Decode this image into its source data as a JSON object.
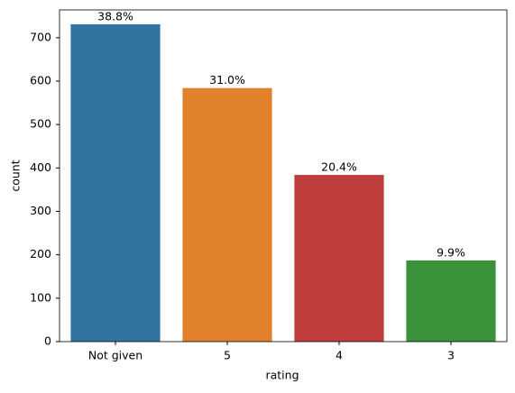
{
  "chart_data": {
    "type": "bar",
    "categories": [
      "Not given",
      "5",
      "4",
      "3"
    ],
    "values": [
      731,
      584,
      384,
      187
    ],
    "annotations": [
      "38.8%",
      "31.0%",
      "20.4%",
      "9.9%"
    ],
    "colors": [
      "#3274a1",
      "#e1812c",
      "#c03d3e",
      "#3a923a"
    ],
    "xlabel": "rating",
    "ylabel": "count",
    "ylim": [
      0,
      764
    ],
    "yticks": [
      0,
      100,
      200,
      300,
      400,
      500,
      600,
      700
    ],
    "grid": false
  }
}
